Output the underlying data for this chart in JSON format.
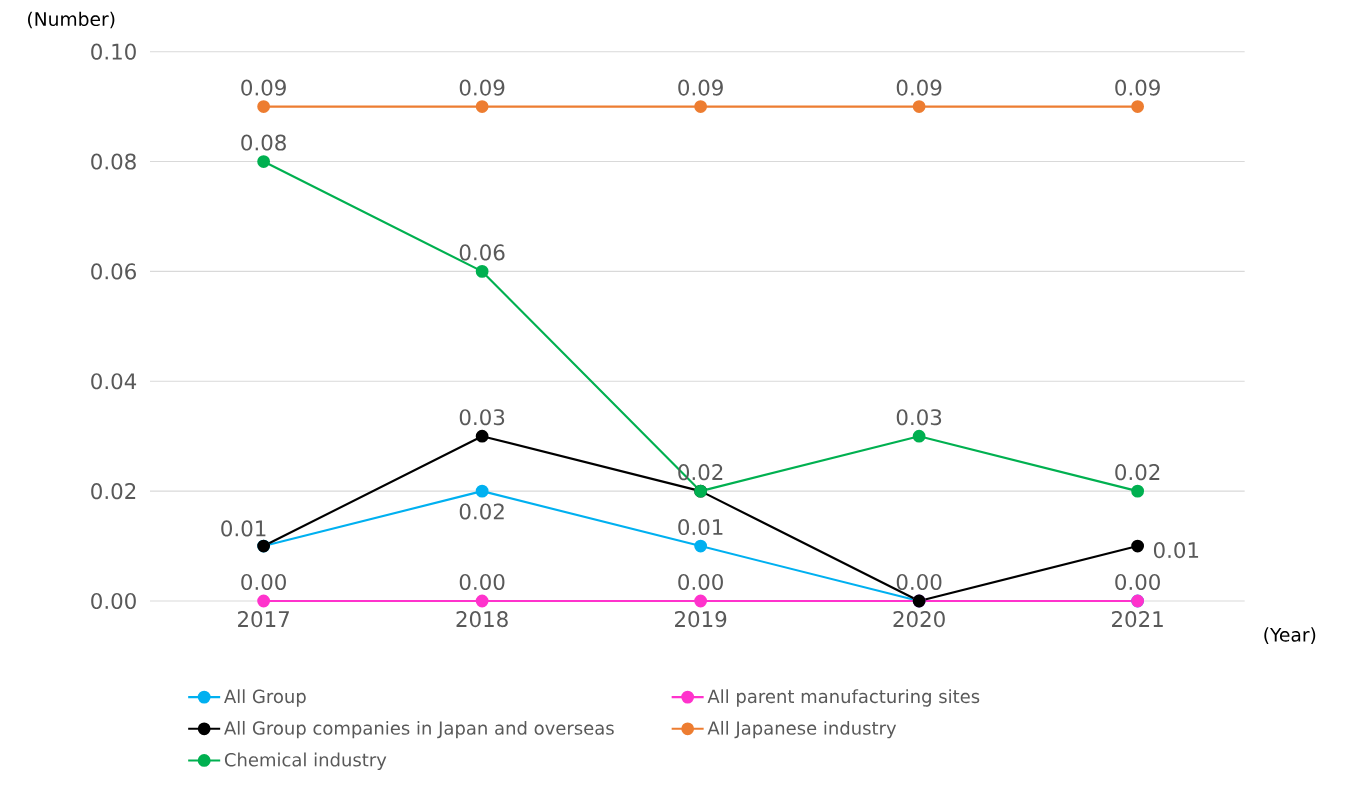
{
  "chart_data": {
    "type": "line",
    "ylabel": "(Number)",
    "xlabel": "(Year)",
    "categories": [
      "2017",
      "2018",
      "2019",
      "2020",
      "2021"
    ],
    "series": [
      {
        "name": "All Group",
        "color": "#00b0f0",
        "values": [
          0.01,
          0.02,
          0.01,
          0.0,
          0.0
        ],
        "value_labels": [
          null,
          "0.02",
          "0.01",
          null,
          null
        ]
      },
      {
        "name": "All parent manufacturing sites",
        "color": "#ff33cc",
        "values": [
          0.0,
          0.0,
          0.0,
          0.0,
          0.0
        ],
        "value_labels": [
          "0.00",
          "0.00",
          "0.00",
          null,
          "0.00"
        ]
      },
      {
        "name": "All Group companies in Japan and overseas",
        "color": "#000000",
        "values": [
          0.01,
          0.03,
          0.02,
          0.0,
          0.01
        ],
        "value_labels": [
          "0.01",
          "0.03",
          null,
          "0.00",
          "0.01"
        ]
      },
      {
        "name": "All Japanese industry",
        "color": "#ed7d31",
        "values": [
          0.09,
          0.09,
          0.09,
          0.09,
          0.09
        ],
        "value_labels": [
          "0.09",
          "0.09",
          "0.09",
          "0.09",
          "0.09"
        ]
      },
      {
        "name": "Chemical industry",
        "color": "#00b050",
        "values": [
          0.08,
          0.06,
          0.02,
          0.03,
          0.02
        ],
        "value_labels": [
          "0.08",
          "0.06",
          "0.02",
          "0.03",
          "0.02"
        ]
      }
    ],
    "ylim": [
      0,
      0.1
    ],
    "yticks": [
      {
        "value": 0,
        "label": "0.00"
      },
      {
        "value": 0.02,
        "label": "0.02"
      },
      {
        "value": 0.04,
        "label": "0.04"
      },
      {
        "value": 0.06,
        "label": "0.06"
      },
      {
        "value": 0.08,
        "label": "0.08"
      },
      {
        "value": 0.1,
        "label": "0.10"
      }
    ],
    "grid": "y",
    "legend": "bottom",
    "marker": "circle",
    "line_style": "solid"
  }
}
